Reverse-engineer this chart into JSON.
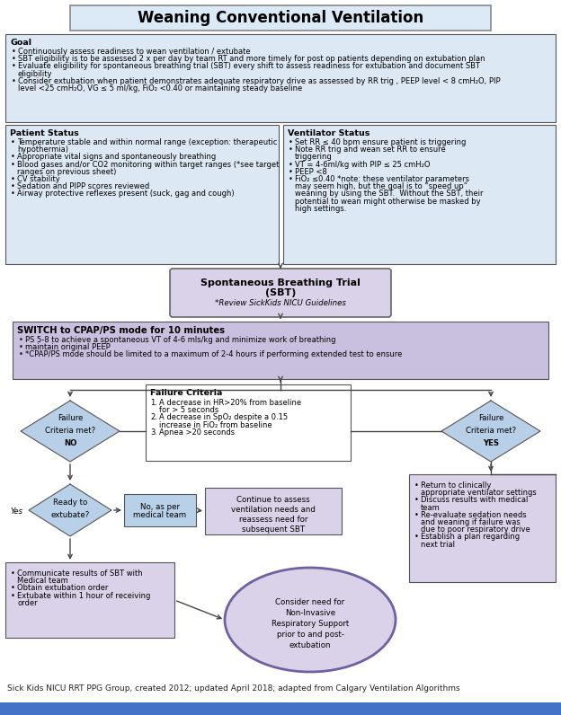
{
  "title": "Weaning Conventional Ventilation",
  "footer": "Sick Kids NICU RRT PPG Group, created 2012; updated April 2018; adapted from Calgary Ventilation Algorithms",
  "bg_color": "#ffffff",
  "title_box_color": "#dce9f7",
  "light_blue": "#dce9f5",
  "medium_blue": "#b8d0e8",
  "light_purple": "#d9d2e9",
  "medium_purple": "#b4a7d6",
  "switch_purple": "#c9bfdf",
  "diamond_blue": "#b8cfe8",
  "arrow_color": "#404040",
  "goal_title": "Goal",
  "goal_bullets": [
    "Continuously assess readiness to wean ventilation / extubate",
    "SBT eligibility is to be assessed 2 x per day by team RT and more timely for post op patients depending on extubation plan",
    "Evaluate eligibility for spontaneous breathing trial (SBT) every shift to assess readiness for extubation and document SBT\n   eligibility",
    "Consider extubation when patient demonstrates adequate respiratory drive as assessed by RR trig , PEEP level < 8 cmH₂O, PIP\n   level <25 cmH₂O, VG ≤ 5 ml/kg, FiO₂ <0.40 or maintaining steady baseline"
  ],
  "patient_title": "Patient Status",
  "patient_bullets": [
    "Temperature stable and within normal range (exception: therapeutic\n   hypothermia)",
    "Appropriate vital signs and spontaneously breathing",
    "Blood gases and/or CO2 monitoring within target ranges (*see target\n   ranges on previous sheet)",
    "CV stability",
    "Sedation and PIPP scores reviewed",
    "Airway protective reflexes present (suck, gag and cough)"
  ],
  "ventilator_title": "Ventilator Status",
  "ventilator_bullets": [
    "Set RR ≤ 40 bpm ensure patient is triggering",
    "Note RR trig and wean set RR to ensure\n   triggering",
    "VT = 4-6ml/kg with PIP ≤ 25 cmH₂O",
    "PEEP <8",
    "FiO₂ ≤0.40 *note: these ventilator parameters\n   may seem high, but the goal is to “speed up”\n   weaning by using the SBT.  Without the SBT, their\n   potential to wean might otherwise be masked by\n   high settings."
  ],
  "sbt_line1": "Spontaneous Breathing Trial",
  "sbt_line2": "(SBT)",
  "sbt_line3": "*Review SickKids NICU Guidelines",
  "switch_title": "SWITCH to CPAP/PS mode for 10 minutes",
  "switch_bullets": [
    "PS 5-8 to achieve a spontaneous VT of 4-6 mls/kg and minimize work of breathing",
    "maintain original PEEP",
    "*CPAP/PS mode should be limited to a maximum of 2-4 hours if performing extended test to ensure"
  ],
  "failure_criteria_title": "Failure Criteria",
  "failure_criteria_numbered": [
    "A decrease in HR>20% from baseline\n   for > 5 seconds",
    "A decrease in SpO₂ despite a 0.15\n   increase in FiO₂ from baseline",
    "Apnea >20 seconds"
  ],
  "diamond1_lines": [
    "Failure",
    "Criteria met?",
    "NO"
  ],
  "diamond2_lines": [
    "Failure",
    "Criteria met?",
    "YES"
  ],
  "ready_lines": [
    "Ready to",
    "extubate?"
  ],
  "no_box_lines": [
    "No, as per",
    "medical team"
  ],
  "continue_lines": [
    "Continue to assess",
    "ventilation needs and",
    "reassess need for",
    "subsequent SBT"
  ],
  "return_bullets": [
    "Return to clinically\n   appropriate ventilator settings",
    "Discuss results with medical\n   team",
    "Re-evaluate sedation needs\n   and weaning if failure was\n   due to poor respiratory drive",
    "Establish a plan regarding\n   next trial"
  ],
  "communicate_bullets": [
    "Communicate results of SBT with\n   Medical team",
    "Obtain extubation order",
    "Extubate within 1 hour of receiving\n   order"
  ],
  "noninvasive_lines": [
    "Consider need for",
    "Non-Invasive",
    "Respiratory Support",
    "prior to and post-",
    "extubation"
  ]
}
